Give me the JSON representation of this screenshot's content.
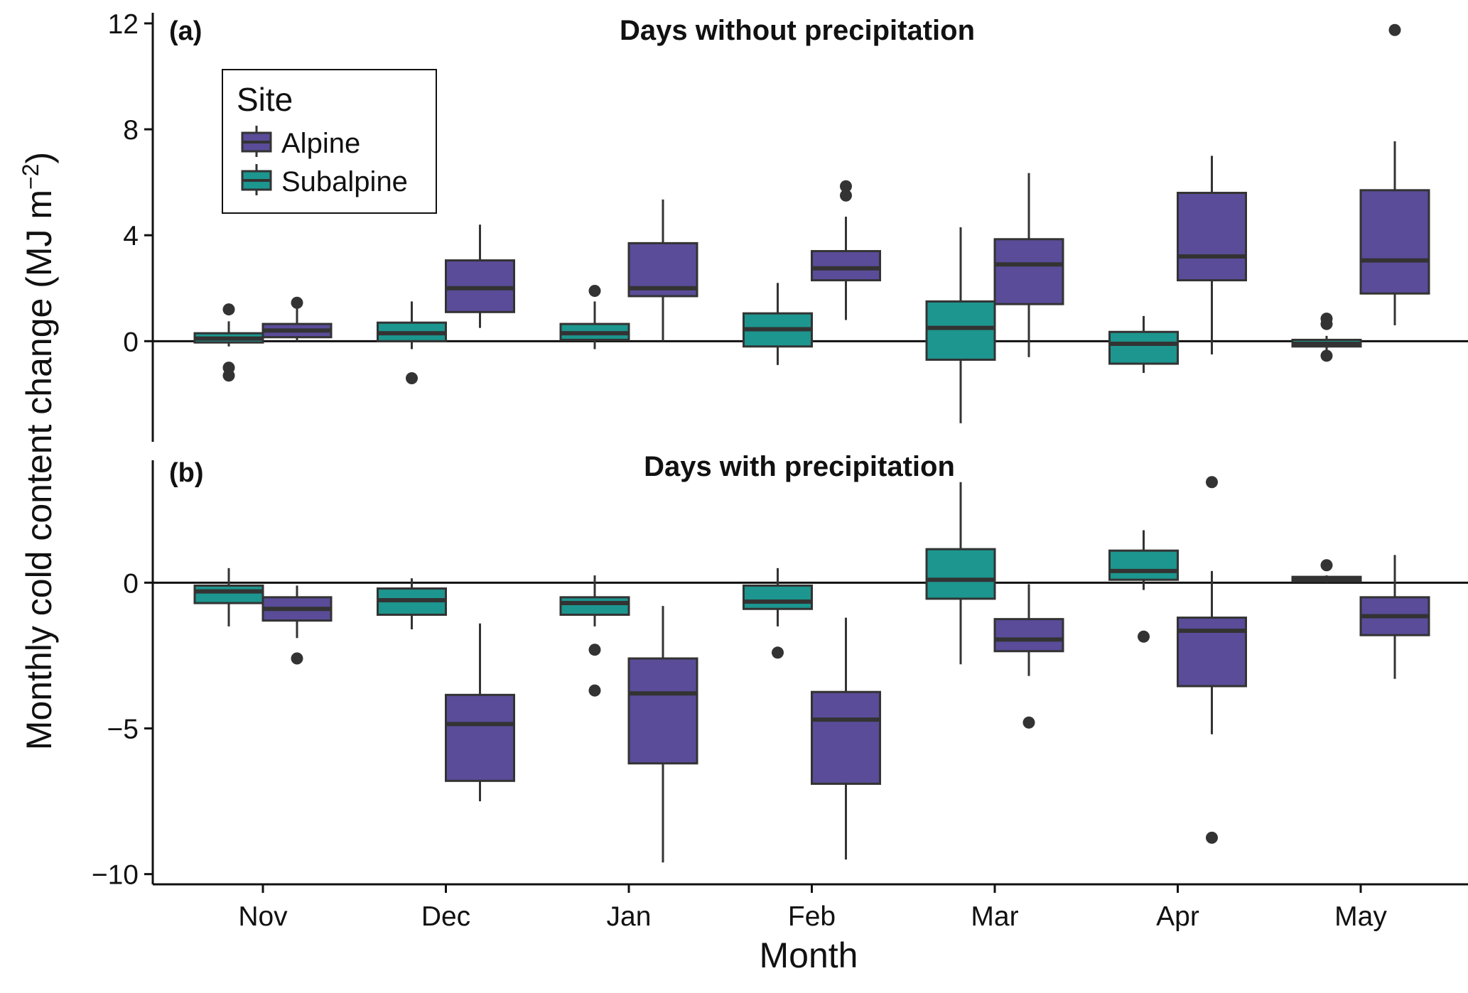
{
  "colors": {
    "alpine": "#5a4c99",
    "subalpine": "#1c968f",
    "line": "#333333",
    "axis": "#111111"
  },
  "chart_data": {
    "type": "boxplot",
    "ylabel": "Monthly cold content change (MJ m",
    "ylabel_exp": "−2",
    "ylabel_close": ")",
    "xlabel": "Month",
    "categories": [
      "Nov",
      "Dec",
      "Jan",
      "Feb",
      "Mar",
      "Apr",
      "May"
    ],
    "legend": {
      "title": "Site",
      "items": [
        "Alpine",
        "Subalpine"
      ]
    },
    "panels": [
      {
        "tag": "(a)",
        "title": "Days without precipitation",
        "ylim": [
          -3.8,
          12.4
        ],
        "yticks": [
          0,
          4,
          8,
          12
        ],
        "ytick_labels": [
          "0",
          "4",
          "8",
          "12"
        ],
        "series": [
          {
            "name": "Subalpine",
            "boxes": [
              {
                "min": -0.2,
                "q1": -0.05,
                "median": 0.1,
                "q3": 0.3,
                "max": 0.75,
                "outliers": [
                  1.2,
                  -1.0,
                  -1.3
                ]
              },
              {
                "min": -0.3,
                "q1": 0.0,
                "median": 0.3,
                "q3": 0.7,
                "max": 1.5,
                "outliers": [
                  -1.4
                ]
              },
              {
                "min": -0.3,
                "q1": 0.05,
                "median": 0.3,
                "q3": 0.65,
                "max": 1.5,
                "outliers": [
                  1.9
                ]
              },
              {
                "min": -0.9,
                "q1": -0.2,
                "median": 0.45,
                "q3": 1.05,
                "max": 2.2,
                "outliers": []
              },
              {
                "min": -3.1,
                "q1": -0.7,
                "median": 0.5,
                "q3": 1.5,
                "max": 4.3,
                "outliers": []
              },
              {
                "min": -1.2,
                "q1": -0.85,
                "median": -0.1,
                "q3": 0.35,
                "max": 0.95,
                "outliers": []
              },
              {
                "min": -0.35,
                "q1": -0.2,
                "median": -0.1,
                "q3": 0.05,
                "max": 0.2,
                "outliers": [
                  0.85,
                  0.65,
                  -0.55
                ]
              }
            ]
          },
          {
            "name": "Alpine",
            "boxes": [
              {
                "min": 0.0,
                "q1": 0.15,
                "median": 0.4,
                "q3": 0.65,
                "max": 1.3,
                "outliers": [
                  1.45
                ]
              },
              {
                "min": 0.5,
                "q1": 1.1,
                "median": 2.0,
                "q3": 3.05,
                "max": 4.4,
                "outliers": []
              },
              {
                "min": 0.0,
                "q1": 1.7,
                "median": 2.0,
                "q3": 3.7,
                "max": 5.35,
                "outliers": []
              },
              {
                "min": 0.8,
                "q1": 2.3,
                "median": 2.75,
                "q3": 3.4,
                "max": 4.7,
                "outliers": [
                  5.85,
                  5.5
                ]
              },
              {
                "min": -0.6,
                "q1": 1.4,
                "median": 2.9,
                "q3": 3.85,
                "max": 6.35,
                "outliers": []
              },
              {
                "min": -0.5,
                "q1": 2.3,
                "median": 3.2,
                "q3": 5.6,
                "max": 7.0,
                "outliers": []
              },
              {
                "min": 0.6,
                "q1": 1.8,
                "median": 3.05,
                "q3": 5.7,
                "max": 7.55,
                "outliers": [
                  11.75
                ]
              }
            ]
          }
        ]
      },
      {
        "tag": "(b)",
        "title": "Days with precipitation",
        "ylim": [
          -10.35,
          4.2
        ],
        "yticks": [
          -10,
          -5,
          0
        ],
        "ytick_labels": [
          "−10",
          "−5",
          "0"
        ],
        "series": [
          {
            "name": "Subalpine",
            "boxes": [
              {
                "min": -1.5,
                "q1": -0.7,
                "median": -0.3,
                "q3": -0.1,
                "max": 0.5,
                "outliers": []
              },
              {
                "min": -1.6,
                "q1": -1.1,
                "median": -0.6,
                "q3": -0.2,
                "max": 0.15,
                "outliers": []
              },
              {
                "min": -1.5,
                "q1": -1.1,
                "median": -0.7,
                "q3": -0.5,
                "max": 0.25,
                "outliers": [
                  -2.3,
                  -3.7
                ]
              },
              {
                "min": -1.5,
                "q1": -0.9,
                "median": -0.65,
                "q3": -0.1,
                "max": 0.5,
                "outliers": [
                  -2.4
                ]
              },
              {
                "min": -2.8,
                "q1": -0.55,
                "median": 0.1,
                "q3": 1.15,
                "max": 3.45,
                "outliers": []
              },
              {
                "min": -0.25,
                "q1": 0.1,
                "median": 0.4,
                "q3": 1.1,
                "max": 1.8,
                "outliers": [
                  -1.85
                ]
              },
              {
                "min": 0.0,
                "q1": 0.05,
                "median": 0.1,
                "q3": 0.2,
                "max": 0.25,
                "outliers": [
                  0.6
                ]
              }
            ]
          },
          {
            "name": "Alpine",
            "boxes": [
              {
                "min": -1.9,
                "q1": -1.3,
                "median": -0.9,
                "q3": -0.5,
                "max": -0.1,
                "outliers": [
                  -2.6
                ]
              },
              {
                "min": -7.5,
                "q1": -6.8,
                "median": -4.85,
                "q3": -3.85,
                "max": -1.4,
                "outliers": []
              },
              {
                "min": -9.6,
                "q1": -6.2,
                "median": -3.8,
                "q3": -2.6,
                "max": -0.8,
                "outliers": []
              },
              {
                "min": -9.5,
                "q1": -6.9,
                "median": -4.7,
                "q3": -3.75,
                "max": -1.2,
                "outliers": []
              },
              {
                "min": -3.2,
                "q1": -2.35,
                "median": -1.95,
                "q3": -1.25,
                "max": -0.05,
                "outliers": [
                  -4.8
                ]
              },
              {
                "min": -5.2,
                "q1": -3.55,
                "median": -1.65,
                "q3": -1.2,
                "max": 0.4,
                "outliers": [
                  3.45,
                  -8.75
                ]
              },
              {
                "min": -3.3,
                "q1": -1.8,
                "median": -1.15,
                "q3": -0.5,
                "max": 0.95,
                "outliers": []
              }
            ]
          }
        ]
      }
    ]
  }
}
